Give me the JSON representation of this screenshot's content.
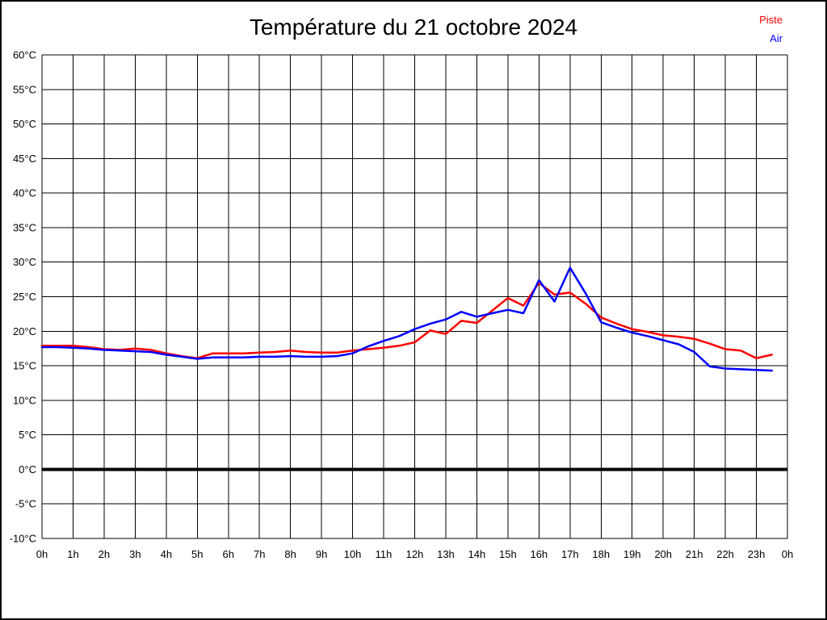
{
  "title": "Température du 21 octobre 2024",
  "legend": [
    {
      "label": "Piste",
      "color": "#ff0000"
    },
    {
      "label": "Air",
      "color": "#0000ff"
    }
  ],
  "colors": {
    "grid": "#000000",
    "zero_line": "#000000",
    "background": "#ffffff",
    "text": "#000000"
  },
  "chart_data": {
    "type": "line",
    "title": "Température du 21 octobre 2024",
    "xlabel": "",
    "ylabel": "",
    "xlim": [
      0,
      24
    ],
    "ylim": [
      -10,
      60
    ],
    "y_tick_step": 5,
    "grid": true,
    "zero_line_bold": true,
    "legend_position": "top-right",
    "x_tick_labels": [
      "0h",
      "1h",
      "2h",
      "3h",
      "4h",
      "5h",
      "6h",
      "7h",
      "8h",
      "9h",
      "10h",
      "11h",
      "12h",
      "13h",
      "14h",
      "15h",
      "16h",
      "17h",
      "18h",
      "19h",
      "20h",
      "21h",
      "22h",
      "23h",
      "0h"
    ],
    "y_tick_labels": [
      "60°C",
      "55°C",
      "50°C",
      "45°C",
      "40°C",
      "35°C",
      "30°C",
      "25°C",
      "20°C",
      "15°C",
      "10°C",
      "5°C",
      "0°C",
      "-5°C",
      "-10°C"
    ],
    "x": [
      0,
      0.5,
      1,
      1.5,
      2,
      2.5,
      3,
      3.5,
      4,
      4.5,
      5,
      5.5,
      6,
      6.5,
      7,
      7.5,
      8,
      8.5,
      9,
      9.5,
      10,
      10.5,
      11,
      11.5,
      12,
      12.5,
      13,
      13.5,
      14,
      14.5,
      15,
      15.5,
      16,
      16.5,
      17,
      17.5,
      18,
      18.5,
      19,
      19.5,
      20,
      20.5,
      21,
      21.5,
      22,
      22.5,
      23,
      23.5
    ],
    "series": [
      {
        "name": "Piste",
        "color": "#ff0000",
        "values": [
          17.9,
          17.9,
          17.9,
          17.7,
          17.4,
          17.3,
          17.5,
          17.3,
          16.8,
          16.4,
          16.1,
          16.8,
          16.8,
          16.8,
          16.9,
          17.0,
          17.2,
          17.0,
          16.9,
          16.9,
          17.2,
          17.4,
          17.6,
          17.9,
          18.4,
          20.1,
          19.6,
          21.5,
          21.2,
          23.0,
          24.8,
          23.7,
          27.0,
          25.3,
          25.6,
          24.0,
          22.0,
          21.1,
          20.3,
          19.9,
          19.4,
          19.2,
          18.9,
          18.2,
          17.4,
          17.2,
          16.1,
          16.6
        ]
      },
      {
        "name": "Air",
        "color": "#0000ff",
        "values": [
          17.7,
          17.7,
          17.6,
          17.5,
          17.3,
          17.2,
          17.1,
          17.0,
          16.6,
          16.3,
          16.0,
          16.2,
          16.2,
          16.2,
          16.3,
          16.3,
          16.4,
          16.3,
          16.3,
          16.4,
          16.8,
          17.8,
          18.6,
          19.3,
          20.3,
          21.1,
          21.7,
          22.8,
          22.1,
          22.6,
          23.1,
          22.6,
          27.4,
          24.3,
          29.2,
          25.5,
          21.3,
          20.5,
          19.8,
          19.3,
          18.7,
          18.1,
          17.0,
          14.9,
          14.6,
          14.5,
          14.4,
          14.3
        ]
      }
    ]
  }
}
